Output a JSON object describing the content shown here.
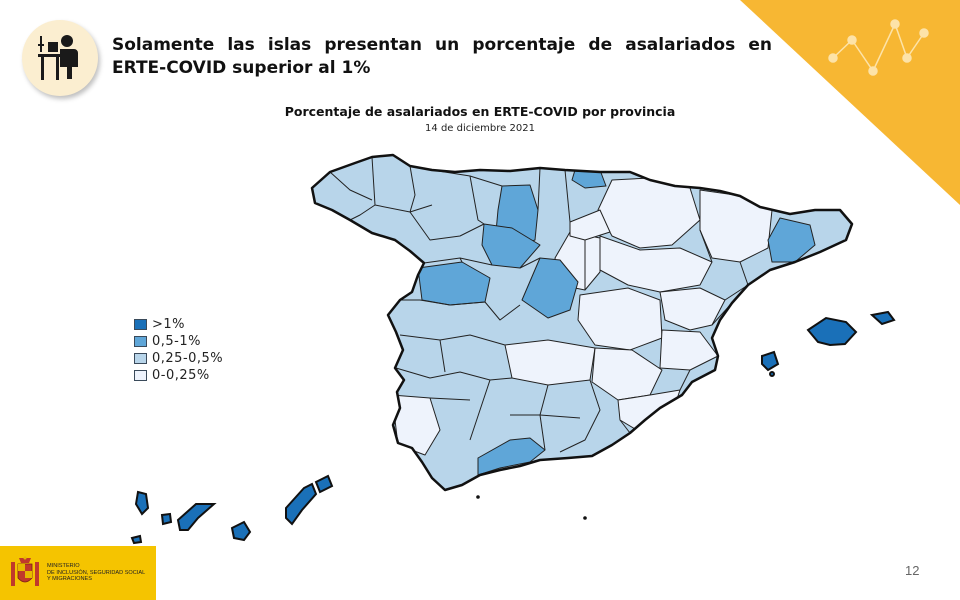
{
  "headline": "Solamente las islas presentan un porcentaje de asalariados en ERTE-COVID superior al 1%",
  "map": {
    "title": "Porcentaje de asalariados en ERTE-COVID por provincia",
    "subtitle": "14 de diciembre 2021"
  },
  "legend": [
    {
      "label": ">1%",
      "color": "#1a70b8"
    },
    {
      "label": "0,5-1%",
      "color": "#5fa6d8"
    },
    {
      "label": "0,25-0,5%",
      "color": "#b8d5ea"
    },
    {
      "label": "0-0,25%",
      "color": "#eef3fc"
    }
  ],
  "logo": {
    "lines": [
      "MINISTERIO",
      "DE INCLUSIÓN, SEGURIDAD SOCIAL",
      "Y MIGRACIONES"
    ]
  },
  "page_number": "12",
  "colors": {
    "accent": "#f7b733",
    "border": "#111111"
  },
  "icons": {
    "header": "person-at-desk-icon",
    "decoration": "network-dots-icon",
    "logo": "coat-of-arms-icon"
  }
}
